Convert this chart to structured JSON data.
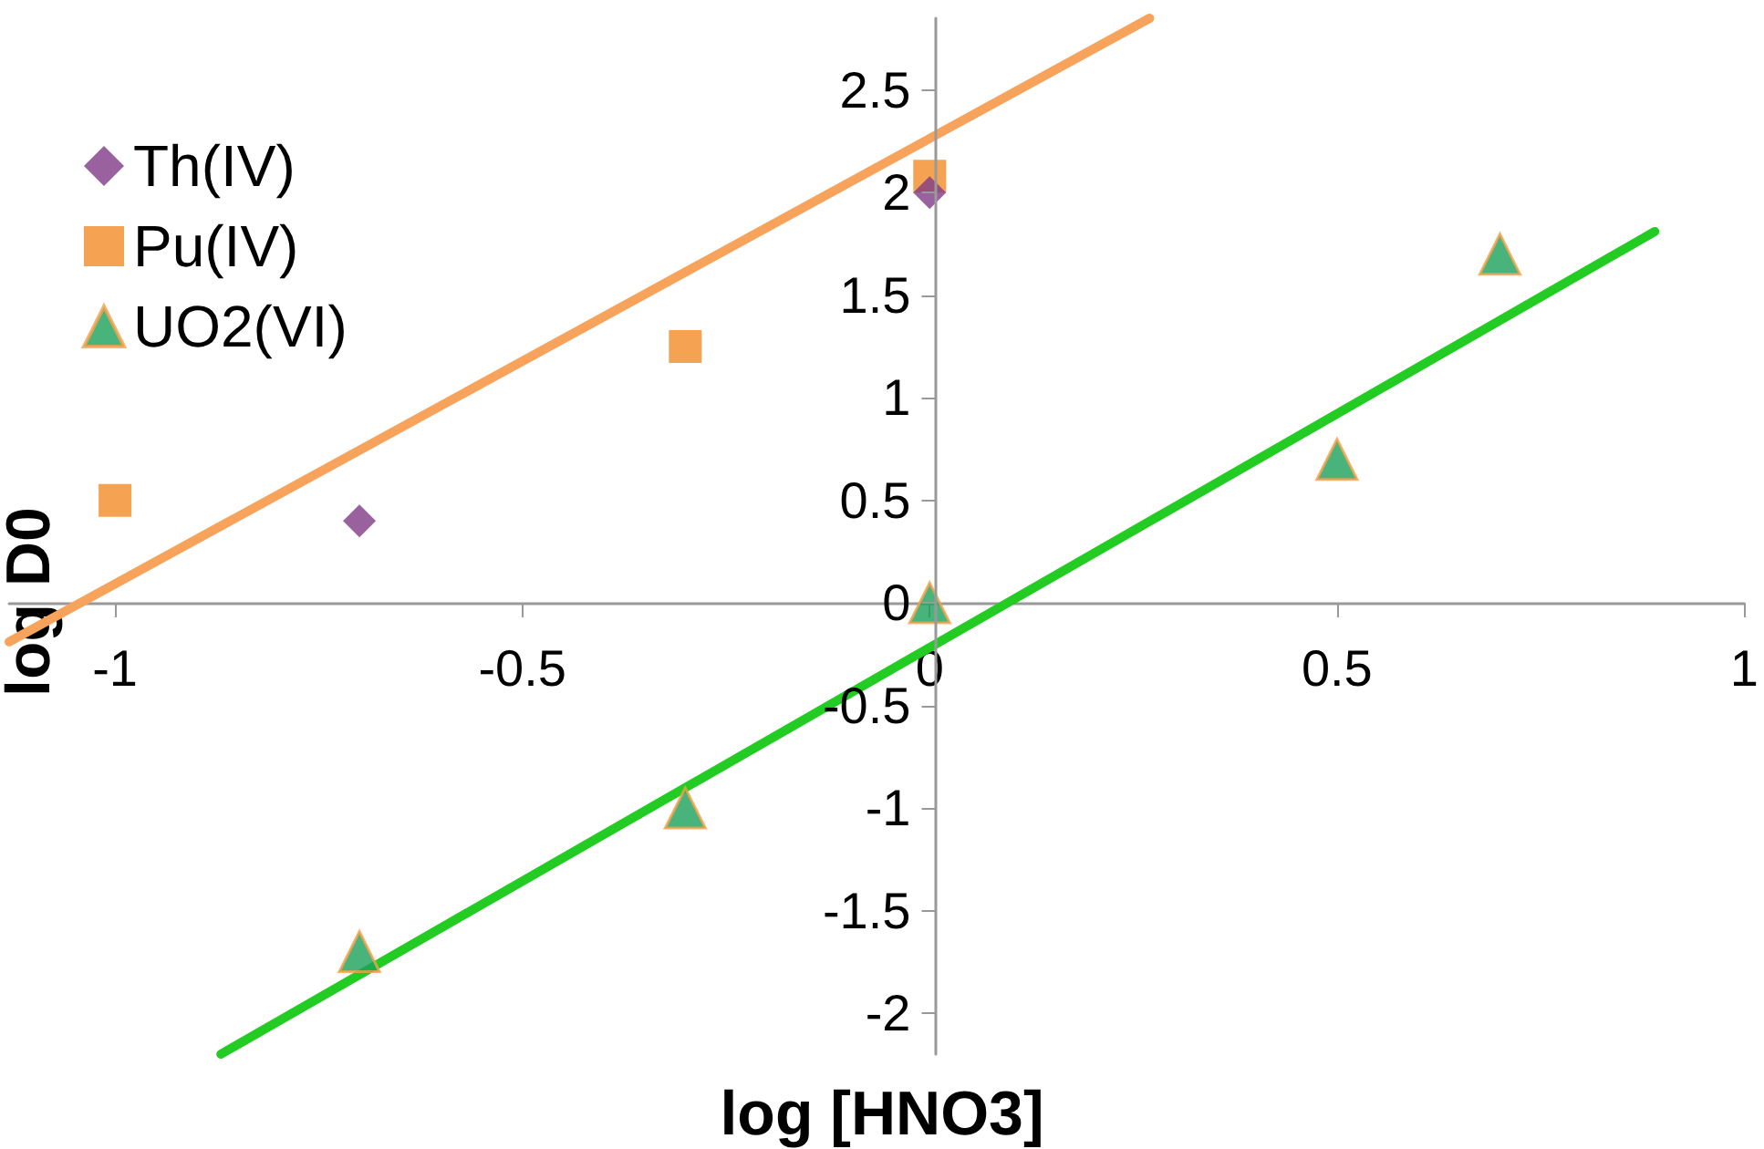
{
  "chart_data": {
    "type": "scatter",
    "xlabel": "log [HNO3]",
    "ylabel": "log D0",
    "xlim": [
      -1.13,
      1
    ],
    "xticks": [
      -1,
      -0.5,
      0,
      0.5,
      1
    ],
    "ylim": [
      -2.2,
      2.85
    ],
    "yticks": [
      -2,
      -1.5,
      -1,
      -0.5,
      0,
      0.5,
      1,
      1.5,
      2,
      2.5
    ],
    "grid": false,
    "legend": "top left",
    "series": [
      {
        "name": "Th(IV)",
        "type": "scatter",
        "marker": "diamond",
        "color": "#7f3a86",
        "x": [
          -0.7,
          0
        ],
        "values": [
          0.4,
          2.0
        ]
      },
      {
        "name": "Pu(IV)",
        "type": "scatter",
        "marker": "square",
        "color": "#f28c28",
        "x": [
          -1,
          -0.3,
          0
        ],
        "values": [
          0.5,
          1.25,
          2.08
        ]
      },
      {
        "name": "UO2(VI)",
        "type": "scatter",
        "marker": "triangle",
        "color": "#1aa15a",
        "x": [
          -0.7,
          -0.3,
          0,
          0.5,
          0.7
        ],
        "values": [
          -1.7,
          -1.0,
          0,
          0.7,
          1.7
        ]
      },
      {
        "type": "line",
        "marker": "none",
        "color": "#f7a35c",
        "x": [
          -1.13,
          0.27
        ],
        "values": [
          -0.19,
          2.85
        ]
      },
      {
        "type": "line",
        "marker": "none",
        "color": "#22cc22",
        "x": [
          -0.87,
          0.89
        ],
        "values": [
          -2.2,
          1.81
        ]
      }
    ]
  }
}
